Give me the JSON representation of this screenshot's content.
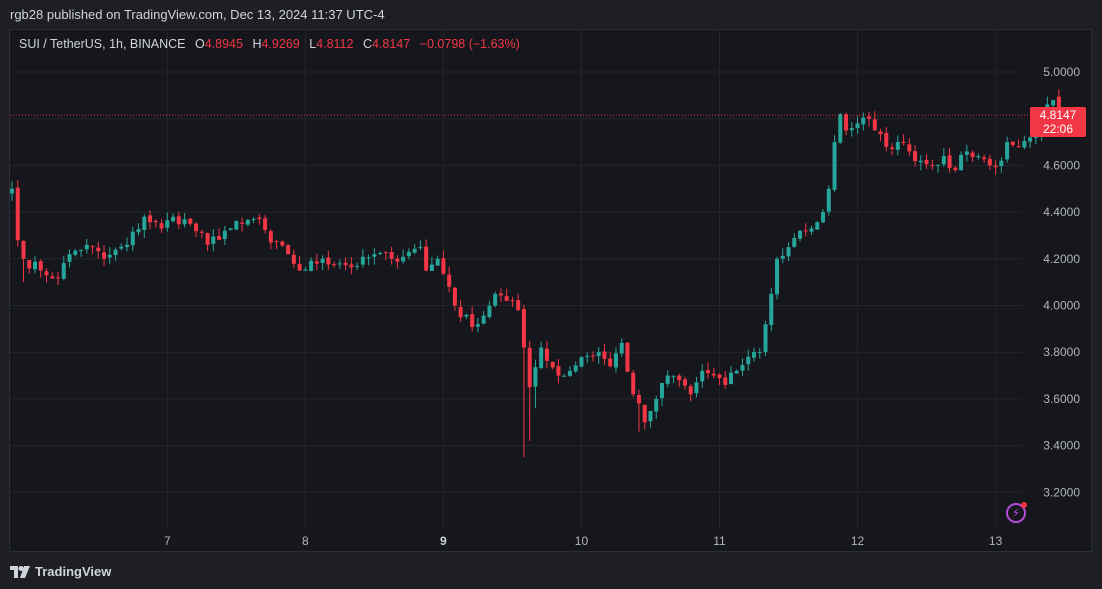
{
  "header": {
    "publisher_line": "rgb28 published on TradingView.com, Dec 13, 2024 11:37 UTC-4"
  },
  "legend": {
    "symbol": "SUI / TetherUS, 1h, BINANCE",
    "open_label": "O",
    "open_value": "4.8945",
    "high_label": "H",
    "high_value": "4.9269",
    "low_label": "L",
    "low_value": "4.8112",
    "close_label": "C",
    "close_value": "4.8147",
    "change": "−0.0798 (−1.63%)"
  },
  "price_tag": {
    "price": "4.8147",
    "countdown": "22:06"
  },
  "footer": {
    "brand": "TradingView"
  },
  "colors": {
    "up": "#26a69a",
    "down": "#f23645",
    "background": "#16171c",
    "grid": "#24262d"
  },
  "icons": {
    "bolt": "lightning-bolt-icon",
    "brand": "tradingview-logo-icon"
  },
  "chart_data": {
    "type": "candlestick",
    "interval": "1h",
    "ylim": [
      3.05,
      5.2
    ],
    "y_ticks": [
      "5.0000",
      "4.8000",
      "4.6000",
      "4.4000",
      "4.2000",
      "4.0000",
      "3.8000",
      "3.6000",
      "3.4000",
      "3.2000"
    ],
    "x_ticks": [
      {
        "label": "7",
        "bold": false,
        "hour": 27
      },
      {
        "label": "8",
        "bold": false,
        "hour": 51
      },
      {
        "label": "9",
        "bold": true,
        "hour": 75
      },
      {
        "label": "10",
        "bold": false,
        "hour": 99
      },
      {
        "label": "11",
        "bold": false,
        "hour": 123
      },
      {
        "label": "12",
        "bold": false,
        "hour": 147
      },
      {
        "label": "13",
        "bold": false,
        "hour": 171
      }
    ],
    "last_price": 4.8147,
    "anchors": [
      {
        "h": 0,
        "p": 4.5
      },
      {
        "h": 1,
        "p": 4.28
      },
      {
        "h": 2,
        "p": 4.2
      },
      {
        "h": 5,
        "p": 4.15
      },
      {
        "h": 8,
        "p": 4.12
      },
      {
        "h": 10,
        "p": 4.22
      },
      {
        "h": 13,
        "p": 4.26
      },
      {
        "h": 16,
        "p": 4.2
      },
      {
        "h": 20,
        "p": 4.26
      },
      {
        "h": 23,
        "p": 4.38
      },
      {
        "h": 26,
        "p": 4.33
      },
      {
        "h": 28,
        "p": 4.38
      },
      {
        "h": 31,
        "p": 4.35
      },
      {
        "h": 34,
        "p": 4.26
      },
      {
        "h": 37,
        "p": 4.32
      },
      {
        "h": 40,
        "p": 4.35
      },
      {
        "h": 43,
        "p": 4.37
      },
      {
        "h": 45,
        "p": 4.27
      },
      {
        "h": 48,
        "p": 4.22
      },
      {
        "h": 50,
        "p": 4.15
      },
      {
        "h": 54,
        "p": 4.2
      },
      {
        "h": 57,
        "p": 4.18
      },
      {
        "h": 60,
        "p": 4.17
      },
      {
        "h": 63,
        "p": 4.22
      },
      {
        "h": 66,
        "p": 4.2
      },
      {
        "h": 69,
        "p": 4.23
      },
      {
        "h": 71,
        "p": 4.25
      },
      {
        "h": 72,
        "p": 4.15
      },
      {
        "h": 74,
        "p": 4.2
      },
      {
        "h": 76,
        "p": 4.08
      },
      {
        "h": 78,
        "p": 3.95
      },
      {
        "h": 81,
        "p": 3.92
      },
      {
        "h": 84,
        "p": 4.05
      },
      {
        "h": 86,
        "p": 4.02
      },
      {
        "h": 88,
        "p": 3.98
      },
      {
        "h": 89,
        "p": 3.82
      },
      {
        "h": 90,
        "p": 3.65
      },
      {
        "h": 92,
        "p": 3.82
      },
      {
        "h": 95,
        "p": 3.7
      },
      {
        "h": 97,
        "p": 3.72
      },
      {
        "h": 99,
        "p": 3.78
      },
      {
        "h": 102,
        "p": 3.8
      },
      {
        "h": 104,
        "p": 3.74
      },
      {
        "h": 106,
        "p": 3.84
      },
      {
        "h": 108,
        "p": 3.62
      },
      {
        "h": 110,
        "p": 3.5
      },
      {
        "h": 112,
        "p": 3.6
      },
      {
        "h": 114,
        "p": 3.7
      },
      {
        "h": 116,
        "p": 3.68
      },
      {
        "h": 118,
        "p": 3.62
      },
      {
        "h": 120,
        "p": 3.72
      },
      {
        "h": 122,
        "p": 3.7
      },
      {
        "h": 124,
        "p": 3.66
      },
      {
        "h": 126,
        "p": 3.72
      },
      {
        "h": 128,
        "p": 3.78
      },
      {
        "h": 130,
        "p": 3.8
      },
      {
        "h": 131,
        "p": 3.92
      },
      {
        "h": 132,
        "p": 4.05
      },
      {
        "h": 133,
        "p": 4.2
      },
      {
        "h": 135,
        "p": 4.25
      },
      {
        "h": 137,
        "p": 4.32
      },
      {
        "h": 139,
        "p": 4.33
      },
      {
        "h": 141,
        "p": 4.4
      },
      {
        "h": 142,
        "p": 4.5
      },
      {
        "h": 143,
        "p": 4.7
      },
      {
        "h": 144,
        "p": 4.82
      },
      {
        "h": 145,
        "p": 4.75
      },
      {
        "h": 147,
        "p": 4.78
      },
      {
        "h": 149,
        "p": 4.8
      },
      {
        "h": 150,
        "p": 4.75
      },
      {
        "h": 152,
        "p": 4.68
      },
      {
        "h": 154,
        "p": 4.7
      },
      {
        "h": 156,
        "p": 4.66
      },
      {
        "h": 158,
        "p": 4.62
      },
      {
        "h": 160,
        "p": 4.6
      },
      {
        "h": 162,
        "p": 4.64
      },
      {
        "h": 164,
        "p": 4.58
      },
      {
        "h": 166,
        "p": 4.66
      },
      {
        "h": 168,
        "p": 4.64
      },
      {
        "h": 170,
        "p": 4.6
      },
      {
        "h": 172,
        "p": 4.62
      },
      {
        "h": 173,
        "p": 4.7
      },
      {
        "h": 175,
        "p": 4.68
      },
      {
        "h": 177,
        "p": 4.72
      },
      {
        "h": 179,
        "p": 4.8
      },
      {
        "h": 181,
        "p": 4.88
      },
      {
        "h": 182,
        "p": 4.8147
      }
    ],
    "spikes": [
      {
        "h": 89,
        "low": 3.35
      },
      {
        "h": 90,
        "low": 3.42
      },
      {
        "h": 91,
        "low": 3.56
      },
      {
        "h": 109,
        "low": 3.46
      },
      {
        "h": 2,
        "low": 4.1
      }
    ]
  }
}
